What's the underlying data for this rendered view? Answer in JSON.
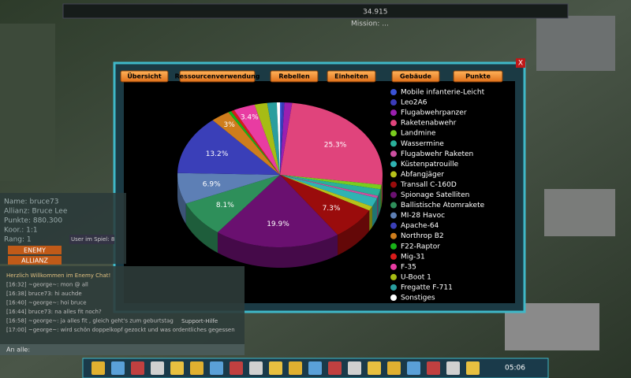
{
  "top_bar": {
    "resource": "34.915",
    "mission": "Mission: ..."
  },
  "dialog": {
    "close": "X",
    "tabs": [
      "Übersicht",
      "Ressourcenverwendung",
      "Rebellen",
      "Einheiten",
      "Gebäude",
      "Punkte"
    ]
  },
  "chart_data": {
    "type": "pie",
    "categories": [
      "Mobile infanterie-Leicht",
      "Leo2A6",
      "Flugabwehrpanzer",
      "Raketenabwehr",
      "Landmine",
      "Wassermine",
      "Flugabwehr Raketen",
      "Küstenpatrouille",
      "Abfangjäger",
      "Transall C-160D",
      "Spionage Satelliten",
      "Ballistische Atomrakete",
      "MI-28 Havoc",
      "Apache-64",
      "Northrop B2",
      "F22-Raptor",
      "Mig-31",
      "F-35",
      "U-Boot 1",
      "Fregatte F-711",
      "Sonstiges"
    ],
    "values": [
      0.3,
      0.4,
      1.2,
      25.3,
      1.0,
      1.5,
      0.5,
      2.0,
      1.0,
      7.3,
      19.9,
      8.1,
      6.9,
      13.2,
      3,
      0.5,
      0.5,
      3.4,
      2.0,
      1.5,
      0.5
    ],
    "value_labels": [
      null,
      null,
      null,
      "25.3%",
      null,
      null,
      null,
      null,
      null,
      "7.3%",
      "19.9%",
      "8.1%",
      "6.9%",
      "13.2%",
      "3%",
      null,
      null,
      "3.4%",
      null,
      null,
      null
    ],
    "colors": [
      "#3a52d6",
      "#3b3bb8",
      "#9b1fb0",
      "#e0447c",
      "#7acc1e",
      "#2ab09a",
      "#cc4fa0",
      "#2fb3b3",
      "#b6c21a",
      "#9a0c0c",
      "#6a1070",
      "#2e8f5a",
      "#5d7fb5",
      "#3a3fb8",
      "#cf7d1c",
      "#18b218",
      "#d81b1b",
      "#e83ca2",
      "#a6bc14",
      "#2a9e9e",
      "#ffffff"
    ]
  },
  "player": {
    "name": "Name:  bruce73",
    "alliance": "Allianz: Bruce Lee",
    "points": "Punkte: 880.300",
    "coords": "Koor.:  1:1",
    "rank": "Rang:  1",
    "enemy": "ENEMY",
    "allianz": "ALLIANZ",
    "users": "User im Spiel: 8"
  },
  "chat": {
    "lines": [
      "Herzlich Willkommen im Enemy Chat!",
      "[16:32] ~george~: mon @ all",
      "[16:38] bruce73: hi auchde",
      "[16:40] ~george~: hoi bruce",
      "[16:44] bruce73: na alles fit noch?",
      "[16:58] ~george~: ja alles fit , gleich geht's zum geburtstag",
      "[17:00] ~george~: wird schön doppelkopf gezockt und was ordentliches gegessen"
    ],
    "support": "Support-Hilfe",
    "input": "An alle:"
  },
  "clock": "05:06"
}
